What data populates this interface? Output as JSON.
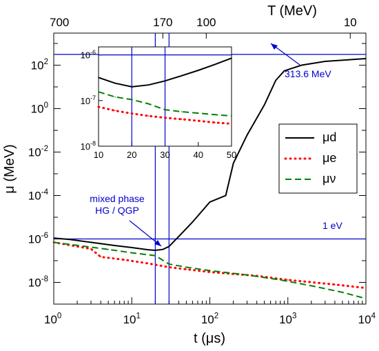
{
  "chart_data": [
    {
      "type": "line",
      "role": "main",
      "xscale": "log",
      "yscale": "log",
      "xlabel": "t (μs)",
      "ylabel": "μ (MeV)",
      "top_axis_label": "T (MeV)",
      "xlim": [
        1,
        10000
      ],
      "ylim": [
        1e-09,
        3000
      ],
      "x_tick_labels": [
        "10^0",
        "10^1",
        "10^2",
        "10^3",
        "10^4"
      ],
      "y_tick_labels": [
        "10^-8",
        "10^-6",
        "10^-4",
        "10^-2",
        "10^0",
        "10^2"
      ],
      "top_tick_labels": [
        {
          "label": "700",
          "t": 1
        },
        {
          "label": "170",
          "t": 25
        },
        {
          "label": "100",
          "t": 90
        },
        {
          "label": "10",
          "t": 6300
        }
      ],
      "series": [
        {
          "name": "μd",
          "color": "#000000",
          "style": "solid",
          "points": [
            [
              1,
              1.1e-06
            ],
            [
              1.6,
              9.5e-07
            ],
            [
              3,
              7e-07
            ],
            [
              6,
              5e-07
            ],
            [
              10,
              4e-07
            ],
            [
              16,
              3.2e-07
            ],
            [
              20,
              3e-07
            ],
            [
              25,
              3.3e-07
            ],
            [
              30,
              4.5e-07
            ],
            [
              40,
              1.3e-06
            ],
            [
              60,
              6e-06
            ],
            [
              100,
              5e-05
            ],
            [
              160,
              0.0001
            ],
            [
              200,
              0.003
            ],
            [
              300,
              0.06
            ],
            [
              500,
              1.5
            ],
            [
              700,
              20
            ],
            [
              900,
              55
            ],
            [
              1500,
              100
            ],
            [
              3000,
              150
            ],
            [
              10000,
              200
            ]
          ]
        },
        {
          "name": "μe",
          "color": "#ff0000",
          "style": "dotted",
          "points": [
            [
              1,
              7e-07
            ],
            [
              3,
              3.5e-07
            ],
            [
              4,
              1.5e-07
            ],
            [
              8,
              1.1e-07
            ],
            [
              16,
              7.5e-08
            ],
            [
              30,
              5e-08
            ],
            [
              50,
              4e-08
            ],
            [
              100,
              3e-08
            ],
            [
              400,
              2e-08
            ],
            [
              1000,
              1.3e-08
            ],
            [
              4000,
              8e-09
            ],
            [
              10000,
              5.5e-09
            ]
          ]
        },
        {
          "name": "μν",
          "color": "#008000",
          "style": "dashed",
          "points": [
            [
              1,
              7e-07
            ],
            [
              5,
              3.3e-07
            ],
            [
              10,
              2.3e-07
            ],
            [
              20,
              1.7e-07
            ],
            [
              30,
              7e-08
            ],
            [
              50,
              5e-08
            ],
            [
              100,
              3.5e-08
            ],
            [
              300,
              2.2e-08
            ],
            [
              800,
              1.3e-08
            ],
            [
              2000,
              7e-09
            ],
            [
              5000,
              3.5e-09
            ],
            [
              10000,
              1.8e-09
            ]
          ]
        }
      ],
      "reference_lines": {
        "horizontal": [
          313.6,
          1e-06
        ],
        "vertical": [
          20,
          30
        ]
      },
      "annotations": [
        {
          "text": "313.6 MeV",
          "color": "#0000cc"
        },
        {
          "text": "1 eV",
          "color": "#0000cc"
        },
        {
          "text": "mixed phase",
          "color": "#0000cc"
        },
        {
          "text": "HG / QGP",
          "color": "#0000cc"
        }
      ],
      "legend_position": "right"
    },
    {
      "type": "line",
      "role": "inset",
      "xscale": "linear",
      "yscale": "log",
      "xlim": [
        10,
        50
      ],
      "ylim": [
        1e-08,
        1.5e-06
      ],
      "x_tick_labels": [
        "10",
        "20",
        "30",
        "40",
        "50"
      ],
      "y_tick_labels": [
        "10^-6",
        "10^-7",
        "10^-8"
      ],
      "series": [
        {
          "name": "μd",
          "color": "#000000",
          "style": "solid",
          "points": [
            [
              10,
              3.2e-07
            ],
            [
              15,
              2.4e-07
            ],
            [
              20,
              2e-07
            ],
            [
              25,
              2.2e-07
            ],
            [
              30,
              2.7e-07
            ],
            [
              35,
              3.5e-07
            ],
            [
              40,
              4.6e-07
            ],
            [
              45,
              6.2e-07
            ],
            [
              50,
              8.5e-07
            ]
          ]
        },
        {
          "name": "μe",
          "color": "#ff0000",
          "style": "dotted",
          "points": [
            [
              10,
              7.3e-08
            ],
            [
              15,
              6e-08
            ],
            [
              20,
              5.2e-08
            ],
            [
              25,
              4.6e-08
            ],
            [
              30,
              4.2e-08
            ],
            [
              35,
              3.9e-08
            ],
            [
              40,
              3.6e-08
            ],
            [
              45,
              3.3e-08
            ],
            [
              50,
              3.1e-08
            ]
          ]
        },
        {
          "name": "μν",
          "color": "#008000",
          "style": "dashed",
          "points": [
            [
              10,
              1.55e-07
            ],
            [
              15,
              1.2e-07
            ],
            [
              20,
              1.05e-07
            ],
            [
              25,
              8.5e-08
            ],
            [
              30,
              6.3e-08
            ],
            [
              35,
              5.7e-08
            ],
            [
              40,
              5.3e-08
            ],
            [
              45,
              4.9e-08
            ],
            [
              50,
              4.6e-08
            ]
          ]
        }
      ],
      "reference_lines": {
        "horizontal": [
          1e-06
        ],
        "vertical": [
          20,
          30
        ]
      }
    }
  ]
}
